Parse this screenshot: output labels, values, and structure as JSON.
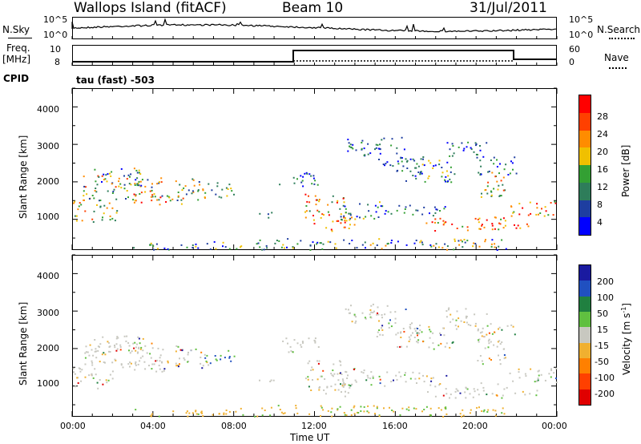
{
  "header": {
    "station": "Wallops Island (fitACF)",
    "beam": "Beam 10",
    "date": "31/Jul/2011"
  },
  "noise_panel": {
    "left_label": "N.Sky",
    "right_label": "N.Search",
    "left_ticks": [
      "10^5",
      "10^0"
    ],
    "right_ticks": [
      "10^5",
      "10^0"
    ]
  },
  "freq_panel": {
    "left_label_top": "Freq.",
    "left_label_unit": "[MHz]",
    "left_ticks": [
      "10",
      "8"
    ],
    "right_label": "Nave",
    "right_ticks": [
      "60",
      "0"
    ]
  },
  "cpid": {
    "label": "CPID",
    "value": "tau (fast) -503"
  },
  "colors": {
    "power": [
      "#0000ff",
      "#1e3ea0",
      "#2e7d5a",
      "#33a033",
      "#f0c000",
      "#ff8c00",
      "#ff4000",
      "#ff0000"
    ],
    "velocity": [
      "#1a1aa0",
      "#2050c0",
      "#208040",
      "#60c040",
      "#c8c8c0",
      "#f0b030",
      "#ff8000",
      "#ff4000",
      "#e00000"
    ]
  },
  "chart_data": [
    {
      "type": "heatmap",
      "title": "",
      "xlabel": "Time UT",
      "ylabel": "Slant Range [km]",
      "x_ticks": [
        "00:00",
        "04:00",
        "08:00",
        "12:00",
        "16:00",
        "20:00",
        "00:00"
      ],
      "y_ticks": [
        "1000",
        "2000",
        "3000",
        "4000"
      ],
      "xlim": [
        "00:00",
        "24:00"
      ],
      "ylim": [
        180,
        4500
      ],
      "colorbar": {
        "label": "Power [dB]",
        "ticks": [
          "4",
          "8",
          "12",
          "16",
          "20",
          "24",
          "28"
        ]
      },
      "quantity": "power"
    },
    {
      "type": "heatmap",
      "title": "",
      "xlabel": "Time UT",
      "ylabel": "Slant Range [km]",
      "x_ticks": [
        "00:00",
        "04:00",
        "08:00",
        "12:00",
        "16:00",
        "20:00",
        "00:00"
      ],
      "y_ticks": [
        "1000",
        "2000",
        "3000",
        "4000"
      ],
      "xlim": [
        "00:00",
        "24:00"
      ],
      "ylim": [
        180,
        4500
      ],
      "colorbar": {
        "label_main": "Velocity [m s",
        "label_sup": "-1",
        "label_end": "]",
        "ticks": [
          "200",
          "100",
          "50",
          "15",
          "-15",
          "-50",
          "-100",
          "-200"
        ]
      },
      "quantity": "velocity"
    }
  ]
}
